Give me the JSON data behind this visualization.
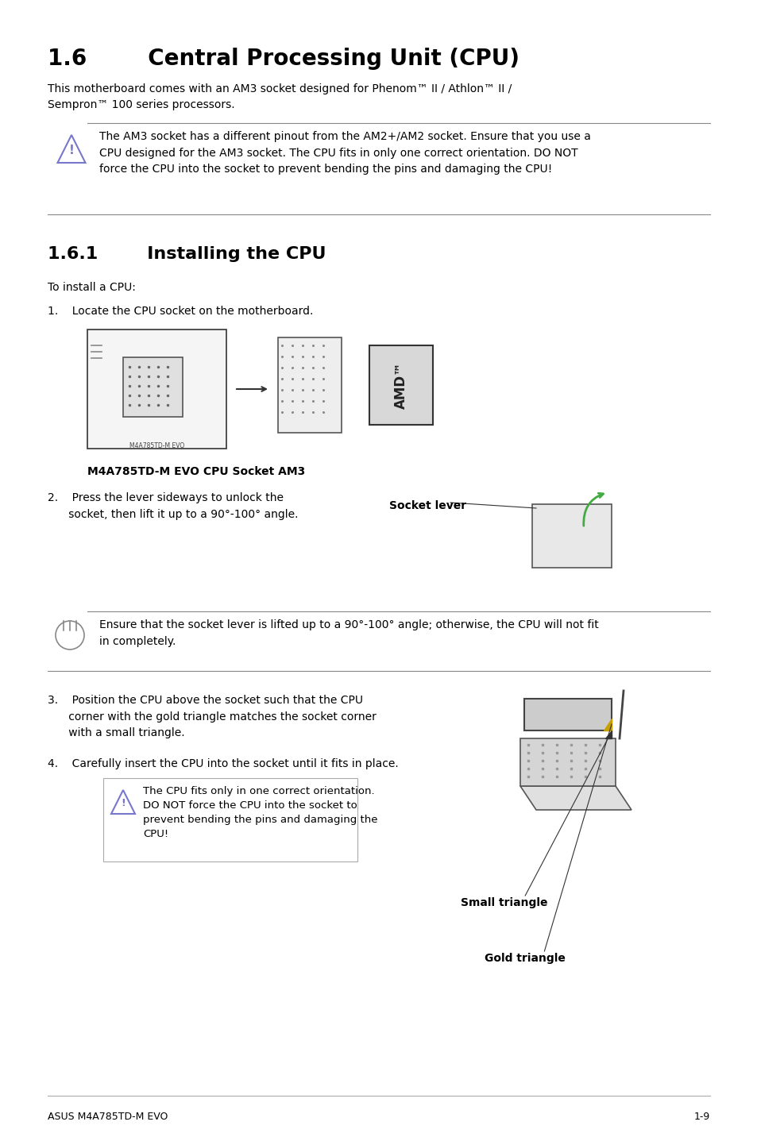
{
  "title": "1.6        Central Processing Unit (CPU)",
  "subtitle": "This motherboard comes with an AM3 socket designed for Phenom™ II / Athlon™ II /\nSempron™ 100 series processors.",
  "warning1_text": "The AM3 socket has a different pinout from the AM2+/AM2 socket. Ensure that you use a\nCPU designed for the AM3 socket. The CPU fits in only one correct orientation. DO NOT\nforce the CPU into the socket to prevent bending the pins and damaging the CPU!",
  "section161": "1.6.1        Installing the CPU",
  "to_install": "To install a CPU:",
  "step1": "1.    Locate the CPU socket on the motherboard.",
  "step1_caption": "M4A785TD-M EVO CPU Socket AM3",
  "step2_text": "2.    Press the lever sideways to unlock the\n      socket, then lift it up to a 90°-100° angle.",
  "socket_lever_label": "Socket lever",
  "warning2_text": "Ensure that the socket lever is lifted up to a 90°-100° angle; otherwise, the CPU will not fit\nin completely.",
  "step3_text": "3.    Position the CPU above the socket such that the CPU\n      corner with the gold triangle matches the socket corner\n      with a small triangle.",
  "step4_text": "4.    Carefully insert the CPU into the socket until it fits in place.",
  "warning3_text": "The CPU fits only in one correct orientation.\nDO NOT force the CPU into the socket to\nprevent bending the pins and damaging the\nCPU!",
  "small_triangle_label": "Small triangle",
  "gold_triangle_label": "Gold triangle",
  "footer_left": "ASUS M4A785TD-M EVO",
  "footer_right": "1-9",
  "bg_color": "#ffffff",
  "text_color": "#000000",
  "warning_border_color": "#888888",
  "title_fontsize": 20,
  "section_fontsize": 16,
  "body_fontsize": 10,
  "footer_fontsize": 9
}
